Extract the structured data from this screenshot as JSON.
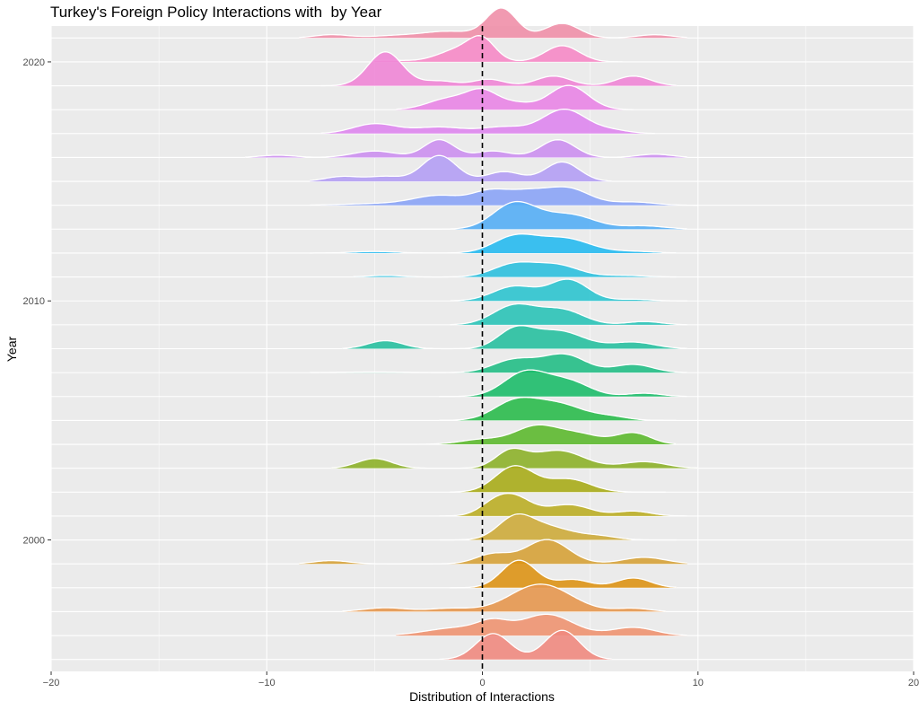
{
  "chart_data": {
    "type": "ridgeline",
    "title": "Turkey's Foreign Policy Interactions with  by Year",
    "xlabel": "Distribution of Interactions",
    "ylabel": "Year",
    "xlim": [
      -20,
      20
    ],
    "x_ticks": [
      -20,
      -10,
      0,
      10,
      20
    ],
    "x_tick_labels": [
      "−20",
      "−10",
      "0",
      "10",
      "20"
    ],
    "y_ticks": [
      2000,
      2010,
      2020
    ],
    "y_tick_labels": [
      "2000",
      "2010",
      "2020"
    ],
    "reference_line": {
      "x": 0,
      "style": "dashed"
    },
    "grid": true,
    "legend": "none",
    "series": [
      {
        "year": 1995,
        "color": "#F08A80",
        "range": [
          -2,
          6
        ],
        "peaks": [
          [
            0.5,
            0.8,
            0.8
          ],
          [
            3.7,
            0.9,
            0.8
          ]
        ]
      },
      {
        "year": 1996,
        "color": "#EE9371",
        "range": [
          -4,
          9.5
        ],
        "peaks": [
          [
            -1,
            0.25,
            1.5
          ],
          [
            0.5,
            0.3,
            0.7
          ],
          [
            3,
            0.65,
            1.2
          ],
          [
            7,
            0.25,
            1.0
          ]
        ]
      },
      {
        "year": 1997,
        "color": "#E6974F",
        "range": [
          -6.5,
          8.5
        ],
        "peaks": [
          [
            -4.5,
            0.12,
            1.0
          ],
          [
            -1.5,
            0.1,
            1.0
          ],
          [
            2.7,
            0.85,
            1.4
          ],
          [
            7,
            0.1,
            0.8
          ]
        ]
      },
      {
        "year": 1998,
        "color": "#DD9416",
        "range": [
          -1.5,
          9
        ],
        "peaks": [
          [
            1.7,
            0.85,
            0.8
          ],
          [
            4.2,
            0.25,
            0.8
          ],
          [
            7,
            0.3,
            0.8
          ]
        ]
      },
      {
        "year": 1999,
        "color": "#D6A238",
        "range": [
          -8.5,
          9.5
        ],
        "peaks": [
          [
            -7,
            0.1,
            0.8
          ],
          [
            0.5,
            0.3,
            0.8
          ],
          [
            3,
            0.75,
            1.0
          ],
          [
            7.5,
            0.2,
            1.0
          ]
        ]
      },
      {
        "year": 2000,
        "color": "#CDAB3B",
        "range": [
          -2,
          9
        ],
        "peaks": [
          [
            1.5,
            0.6,
            0.8
          ],
          [
            3,
            0.4,
            1.2
          ],
          [
            5.5,
            0.1,
            0.8
          ]
        ]
      },
      {
        "year": 2001,
        "color": "#BBAE26",
        "range": [
          -2,
          9.5
        ],
        "peaks": [
          [
            0.5,
            0.3,
            0.7
          ],
          [
            1.5,
            0.55,
            0.8
          ],
          [
            4,
            0.35,
            1.0
          ],
          [
            7,
            0.15,
            0.8
          ]
        ]
      },
      {
        "year": 2002,
        "color": "#A8AC1A",
        "range": [
          -1.5,
          8.5
        ],
        "peaks": [
          [
            1.5,
            0.8,
            0.9
          ],
          [
            4,
            0.4,
            1.0
          ]
        ]
      },
      {
        "year": 2003,
        "color": "#8DB12A",
        "range": [
          -7,
          10
        ],
        "peaks": [
          [
            -5,
            0.3,
            0.8
          ],
          [
            1.3,
            0.5,
            0.7
          ],
          [
            3.5,
            0.55,
            1.2
          ],
          [
            7.5,
            0.2,
            1.0
          ]
        ]
      },
      {
        "year": 2004,
        "color": "#5DB92F",
        "range": [
          -5,
          9
        ],
        "peaks": [
          [
            0,
            0.15,
            1.0
          ],
          [
            2.5,
            0.55,
            1.0
          ],
          [
            4.5,
            0.3,
            1.0
          ],
          [
            7,
            0.35,
            0.8
          ]
        ]
      },
      {
        "year": 2005,
        "color": "#2BBB4C",
        "range": [
          -2,
          9
        ],
        "peaks": [
          [
            1.5,
            0.55,
            1.0
          ],
          [
            3.5,
            0.5,
            1.2
          ],
          [
            6,
            0.1,
            0.8
          ]
        ]
      },
      {
        "year": 2006,
        "color": "#1DBD6A",
        "range": [
          -2,
          9.5
        ],
        "peaks": [
          [
            2,
            0.75,
            1.0
          ],
          [
            4,
            0.45,
            1.0
          ],
          [
            7.5,
            0.1,
            0.8
          ]
        ]
      },
      {
        "year": 2007,
        "color": "#24BE86",
        "range": [
          -8,
          9.5
        ],
        "peaks": [
          [
            -5,
            0.02,
            1.5
          ],
          [
            1.5,
            0.4,
            1.0
          ],
          [
            3.8,
            0.55,
            1.0
          ],
          [
            7,
            0.25,
            0.9
          ]
        ]
      },
      {
        "year": 2008,
        "color": "#28C0A0",
        "range": [
          -6.5,
          9.5
        ],
        "peaks": [
          [
            -4.5,
            0.25,
            0.8
          ],
          [
            1.5,
            0.55,
            0.8
          ],
          [
            3.5,
            0.55,
            1.2
          ],
          [
            7,
            0.2,
            1.0
          ]
        ]
      },
      {
        "year": 2009,
        "color": "#2BC3B7",
        "range": [
          -1.5,
          9.5
        ],
        "peaks": [
          [
            1.5,
            0.6,
            1.0
          ],
          [
            3.7,
            0.45,
            1.0
          ],
          [
            7.5,
            0.1,
            0.8
          ]
        ]
      },
      {
        "year": 2010,
        "color": "#2EC4CF",
        "range": [
          -1.5,
          9.5
        ],
        "peaks": [
          [
            1.5,
            0.45,
            1.0
          ],
          [
            4,
            0.65,
            0.9
          ],
          [
            7,
            0.05,
            0.8
          ]
        ]
      },
      {
        "year": 2011,
        "color": "#2DC0DE",
        "range": [
          -6,
          9
        ],
        "peaks": [
          [
            -4.5,
            0.05,
            0.8
          ],
          [
            1.5,
            0.4,
            1.0
          ],
          [
            3.5,
            0.35,
            1.0
          ],
          [
            6.5,
            0.05,
            1.0
          ]
        ]
      },
      {
        "year": 2012,
        "color": "#27BAF0",
        "range": [
          -8,
          9
        ],
        "peaks": [
          [
            -5,
            0.05,
            1.0
          ],
          [
            1.5,
            0.5,
            1.0
          ],
          [
            3.8,
            0.45,
            1.2
          ],
          [
            7,
            0.05,
            1.0
          ]
        ]
      },
      {
        "year": 2013,
        "color": "#55AEF5",
        "range": [
          -5,
          9.5
        ],
        "peaks": [
          [
            1.5,
            0.8,
            1.0
          ],
          [
            4,
            0.45,
            1.2
          ],
          [
            7.5,
            0.1,
            1.0
          ]
        ]
      },
      {
        "year": 2014,
        "color": "#8BA4F6",
        "range": [
          -8,
          10
        ],
        "peaks": [
          [
            -5,
            0.05,
            1.5
          ],
          [
            -2,
            0.3,
            1.2
          ],
          [
            0.3,
            0.35,
            0.8
          ],
          [
            2,
            0.4,
            1.0
          ],
          [
            4,
            0.5,
            1.0
          ],
          [
            7,
            0.1,
            1.0
          ]
        ]
      },
      {
        "year": 2015,
        "color": "#B49EF4",
        "range": [
          -8,
          6
        ],
        "peaks": [
          [
            -6.5,
            0.15,
            0.8
          ],
          [
            -4.5,
            0.15,
            0.8
          ],
          [
            -2,
            0.8,
            0.8
          ],
          [
            1,
            0.3,
            0.8
          ],
          [
            3.7,
            0.6,
            0.8
          ]
        ]
      },
      {
        "year": 2016,
        "color": "#CC90F0",
        "range": [
          -11,
          9.5
        ],
        "peaks": [
          [
            -9.5,
            0.07,
            0.8
          ],
          [
            -5,
            0.2,
            1.0
          ],
          [
            -2,
            0.55,
            0.7
          ],
          [
            0.5,
            0.2,
            0.8
          ],
          [
            3.5,
            0.55,
            0.8
          ],
          [
            8,
            0.1,
            0.8
          ]
        ]
      },
      {
        "year": 2017,
        "color": "#DE86EE",
        "range": [
          -7.5,
          8
        ],
        "peaks": [
          [
            -5,
            0.3,
            1.0
          ],
          [
            -2,
            0.2,
            1.2
          ],
          [
            1,
            0.2,
            1.0
          ],
          [
            3.8,
            0.75,
            1.0
          ],
          [
            6,
            0.1,
            0.8
          ]
        ]
      },
      {
        "year": 2018,
        "color": "#E985E6",
        "range": [
          -4,
          7
        ],
        "peaks": [
          [
            -1.5,
            0.35,
            1.0
          ],
          [
            0,
            0.5,
            0.7
          ],
          [
            1.5,
            0.2,
            0.8
          ],
          [
            4,
            0.75,
            0.9
          ]
        ]
      },
      {
        "year": 2019,
        "color": "#F086D6",
        "range": [
          -7.5,
          9
        ],
        "peaks": [
          [
            -4.5,
            1.05,
            0.8
          ],
          [
            -2,
            0.15,
            0.8
          ],
          [
            0.3,
            0.2,
            0.7
          ],
          [
            3.3,
            0.3,
            0.8
          ],
          [
            7,
            0.3,
            0.8
          ]
        ]
      },
      {
        "year": 2020,
        "color": "#F689C6",
        "range": [
          -5,
          6.5
        ],
        "peaks": [
          [
            -4.5,
            0.05,
            1.0
          ],
          [
            -1,
            0.4,
            1.0
          ],
          [
            0,
            0.55,
            0.6
          ],
          [
            3.7,
            0.5,
            0.8
          ]
        ]
      },
      {
        "year": 2021,
        "color": "#F08FA8",
        "range": [
          -8.5,
          9.5
        ],
        "peaks": [
          [
            -7,
            0.1,
            0.8
          ],
          [
            -4,
            0.07,
            1.2
          ],
          [
            -1.5,
            0.2,
            1.2
          ],
          [
            0.9,
            0.9,
            0.7
          ],
          [
            3.7,
            0.45,
            0.8
          ],
          [
            8,
            0.1,
            0.8
          ]
        ]
      }
    ]
  }
}
